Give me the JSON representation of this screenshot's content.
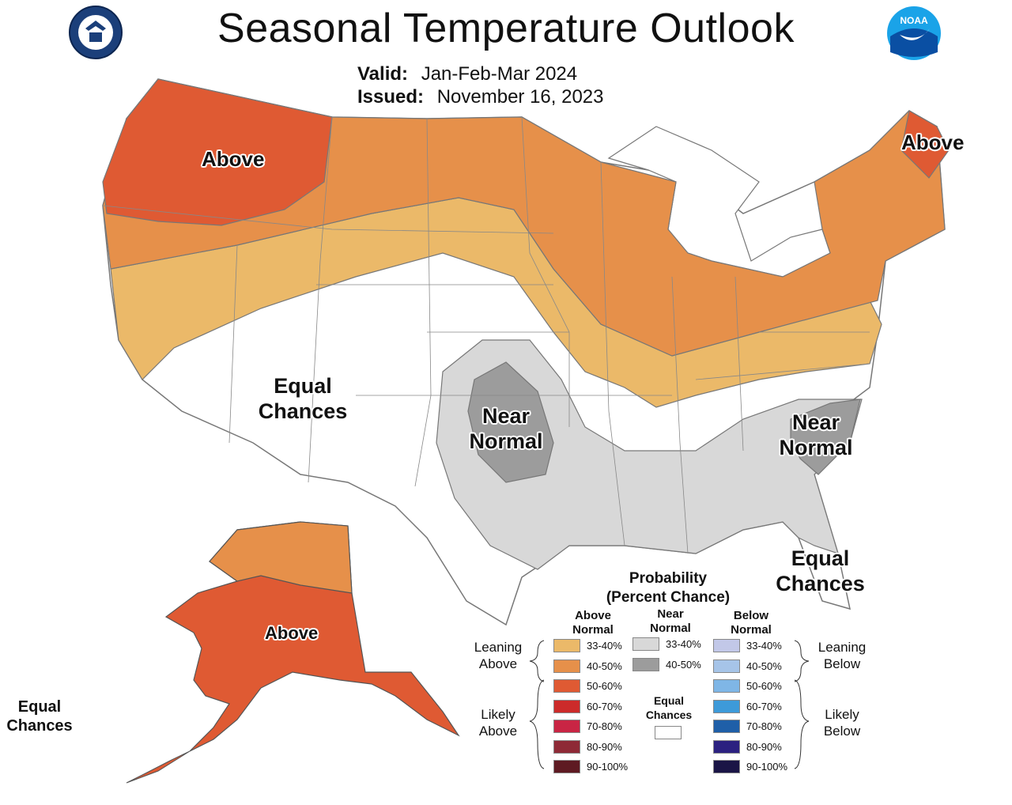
{
  "header": {
    "title": "Seasonal Temperature Outlook",
    "valid_label": "Valid:",
    "valid_value": "Jan-Feb-Mar 2024",
    "issued_label": "Issued:",
    "issued_value": "November 16, 2023"
  },
  "logos": {
    "left": "department-of-commerce-seal",
    "right": "noaa-logo"
  },
  "map_labels": {
    "northwest": "Above",
    "northeast": "Above",
    "southwest_line1": "Equal",
    "southwest_line2": "Chances",
    "southern_plains_line1": "Near",
    "southern_plains_line2": "Normal",
    "carolinas_line1": "Near",
    "carolinas_line2": "Normal",
    "florida_line1": "Equal",
    "florida_line2": "Chances",
    "alaska": "Above",
    "hawaii_line1": "Equal",
    "hawaii_line2": "Chances"
  },
  "legend": {
    "title_line1": "Probability",
    "title_line2": "(Percent Chance)",
    "above_head_line1": "Above",
    "above_head_line2": "Normal",
    "near_head_line1": "Near",
    "near_head_line2": "Normal",
    "below_head_line1": "Below",
    "below_head_line2": "Normal",
    "leaning_above_line1": "Leaning",
    "leaning_above_line2": "Above",
    "likely_above_line1": "Likely",
    "likely_above_line2": "Above",
    "leaning_below_line1": "Leaning",
    "leaning_below_line2": "Below",
    "likely_below_line1": "Likely",
    "likely_below_line2": "Below",
    "equal_line1": "Equal",
    "equal_line2": "Chances",
    "above": [
      {
        "label": "33-40%",
        "color": "#EBB969"
      },
      {
        "label": "40-50%",
        "color": "#E6904A"
      },
      {
        "label": "50-60%",
        "color": "#DF5A33"
      },
      {
        "label": "60-70%",
        "color": "#CC2B2A"
      },
      {
        "label": "70-80%",
        "color": "#C92544"
      },
      {
        "label": "80-90%",
        "color": "#8E2A36"
      },
      {
        "label": "90-100%",
        "color": "#5E1A22"
      }
    ],
    "near": [
      {
        "label": "33-40%",
        "color": "#D8D8D8"
      },
      {
        "label": "40-50%",
        "color": "#9C9C9C"
      }
    ],
    "below": [
      {
        "label": "33-40%",
        "color": "#C2C8E8"
      },
      {
        "label": "40-50%",
        "color": "#A6C4E8"
      },
      {
        "label": "50-60%",
        "color": "#7FB6E6"
      },
      {
        "label": "60-70%",
        "color": "#3D9AD9"
      },
      {
        "label": "70-80%",
        "color": "#1F5FA8"
      },
      {
        "label": "80-90%",
        "color": "#2B2180"
      },
      {
        "label": "90-100%",
        "color": "#1A1546"
      }
    ]
  }
}
